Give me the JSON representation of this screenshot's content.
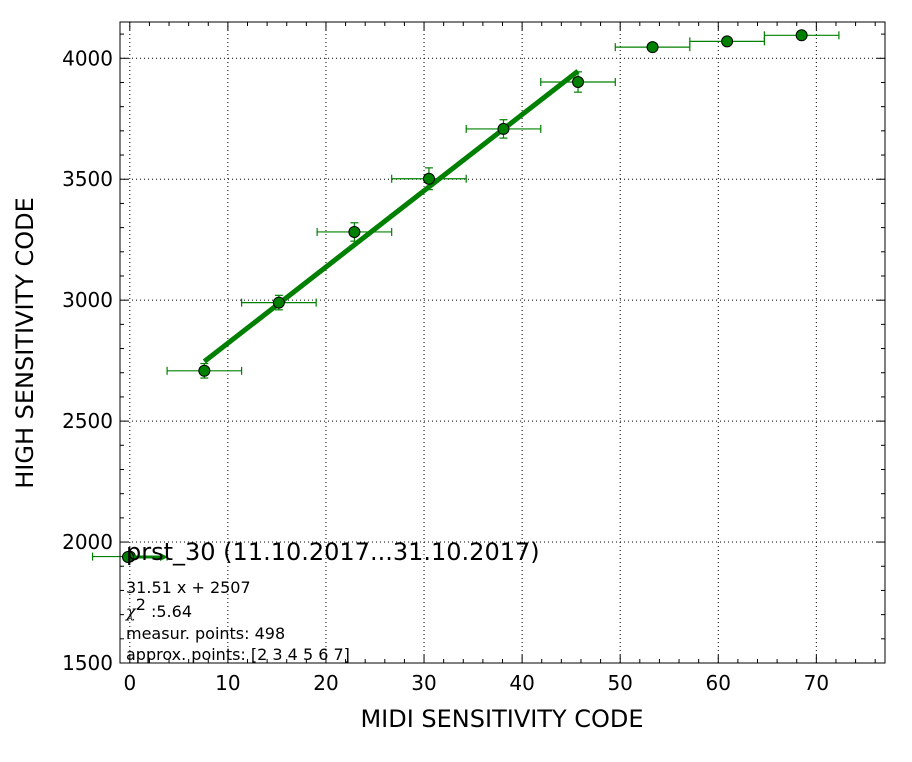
{
  "chart_data": {
    "type": "scatter",
    "title": "",
    "xlabel": "MIDI SENSITIVITY CODE",
    "ylabel": "HIGH SENSITIVITY CODE",
    "xlim": [
      -1,
      77
    ],
    "ylim": [
      1500,
      4150
    ],
    "x_ticks": [
      0,
      10,
      20,
      30,
      40,
      50,
      60,
      70
    ],
    "y_ticks": [
      1500,
      2000,
      2500,
      3000,
      3500,
      4000
    ],
    "grid": true,
    "colors": {
      "marker": "#008000",
      "fit_line": "#008000",
      "errorbar": "#008000",
      "marker_edge": "#000000"
    },
    "series": [
      {
        "points": [
          {
            "x": 0.0,
            "y": 1940,
            "xerr": 3.8,
            "yerr": 8
          },
          {
            "x": 7.6,
            "y": 2708,
            "xerr": 3.8,
            "yerr": 30
          },
          {
            "x": 15.2,
            "y": 2990,
            "xerr": 3.8,
            "yerr": 30
          },
          {
            "x": 22.9,
            "y": 3282,
            "xerr": 3.8,
            "yerr": 38
          },
          {
            "x": 30.5,
            "y": 3502,
            "xerr": 3.8,
            "yerr": 45
          },
          {
            "x": 38.1,
            "y": 3708,
            "xerr": 3.8,
            "yerr": 38
          },
          {
            "x": 45.7,
            "y": 3902,
            "xerr": 3.8,
            "yerr": 42
          },
          {
            "x": 53.3,
            "y": 4046,
            "xerr": 3.8,
            "yerr": 10
          },
          {
            "x": 60.9,
            "y": 4070,
            "xerr": 3.8,
            "yerr": 10
          },
          {
            "x": 68.5,
            "y": 4095,
            "xerr": 3.8,
            "yerr": 10
          }
        ]
      }
    ],
    "fit": {
      "slope": 31.51,
      "intercept": 2507,
      "x_range": [
        7.6,
        45.7
      ]
    },
    "legend": {
      "placement": "lower-left",
      "title": "prst_30 (11.10.2017...31.10.2017)",
      "equation": "31.51 x + 2507",
      "chi_symbol": "χ",
      "chi_superscript": "2",
      "chi_value": " :5.64",
      "measur_points": "measur. points: 498",
      "approx_points": "approx. points: [2 3 4 5 6 7]"
    }
  }
}
